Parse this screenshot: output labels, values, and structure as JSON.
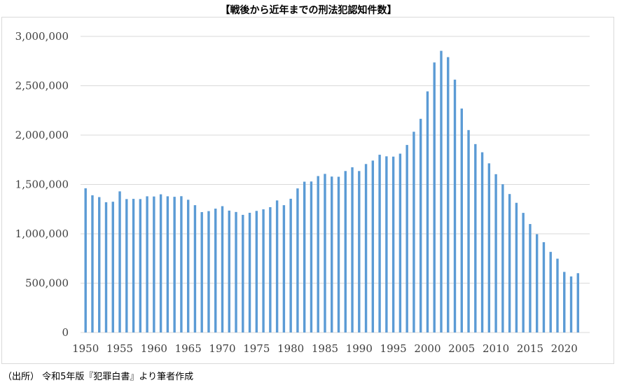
{
  "title": "【戦後から近年までの刑法犯認知件数】",
  "source": "（出所） 令和5年版『犯罪白書』より筆者作成",
  "colors": {
    "bar": "#5b9bd5",
    "grid": "#d9d9d9",
    "axis": "#d9d9d9",
    "tick": "#404040"
  },
  "chart_data": {
    "type": "bar",
    "title": "【戦後から近年までの刑法犯認知件数】",
    "xlabel": "",
    "ylabel": "",
    "ylim": [
      0,
      3000000
    ],
    "yticks": [
      0,
      500000,
      1000000,
      1500000,
      2000000,
      2500000,
      3000000
    ],
    "ytick_labels": [
      "0",
      "500,000",
      "1,000,000",
      "1,500,000",
      "2,000,000",
      "2,500,000",
      "3,000,000"
    ],
    "xtick_labels": [
      "1950",
      "1955",
      "1960",
      "1965",
      "1970",
      "1975",
      "1980",
      "1985",
      "1990",
      "1995",
      "2000",
      "2005",
      "2010",
      "2015",
      "2020"
    ],
    "grid": true,
    "legend": "none",
    "categories": [
      1950,
      1951,
      1952,
      1953,
      1954,
      1955,
      1956,
      1957,
      1958,
      1959,
      1960,
      1961,
      1962,
      1963,
      1964,
      1965,
      1966,
      1967,
      1968,
      1969,
      1970,
      1971,
      1972,
      1973,
      1974,
      1975,
      1976,
      1977,
      1978,
      1979,
      1980,
      1981,
      1982,
      1983,
      1984,
      1985,
      1986,
      1987,
      1988,
      1989,
      1990,
      1991,
      1992,
      1993,
      1994,
      1995,
      1996,
      1997,
      1998,
      1999,
      2000,
      2001,
      2002,
      2003,
      2004,
      2005,
      2006,
      2007,
      2008,
      2009,
      2010,
      2011,
      2012,
      2013,
      2014,
      2015,
      2016,
      2017,
      2018,
      2019,
      2020,
      2021,
      2022
    ],
    "values": [
      1461000,
      1390000,
      1372000,
      1320000,
      1325000,
      1430000,
      1352000,
      1354000,
      1352000,
      1380000,
      1378000,
      1400000,
      1380000,
      1375000,
      1381000,
      1345000,
      1290000,
      1220000,
      1230000,
      1255000,
      1280000,
      1235000,
      1221000,
      1192000,
      1213000,
      1232000,
      1248000,
      1270000,
      1338000,
      1290000,
      1355000,
      1460000,
      1528000,
      1530000,
      1585000,
      1607000,
      1580000,
      1578000,
      1636000,
      1674000,
      1636000,
      1707000,
      1742000,
      1801000,
      1785000,
      1782000,
      1812000,
      1900000,
      2034000,
      2165000,
      2443000,
      2736000,
      2854000,
      2790000,
      2562000,
      2269000,
      2051000,
      1909000,
      1826000,
      1714000,
      1604000,
      1502000,
      1403000,
      1314000,
      1212000,
      1099000,
      996000,
      915000,
      817000,
      748000,
      614000,
      568000,
      601000
    ]
  }
}
